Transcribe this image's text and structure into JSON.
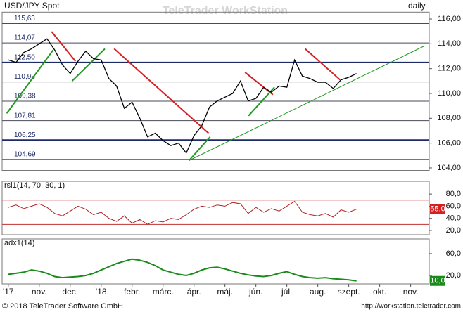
{
  "header": {
    "watermark": "TeleTrader WorkStation"
  },
  "footer": {
    "left": "© 2018 TeleTrader Software GmbH",
    "right": "http://workstation.teletrader.com"
  },
  "chart_data": [
    {
      "type": "line",
      "title": "USD/JPY Spot",
      "subtitle": "daily",
      "color": "#000000",
      "x": [
        0,
        0.25,
        0.5,
        0.75,
        1,
        1.25,
        1.5,
        1.75,
        2,
        2.25,
        2.5,
        2.75,
        3,
        3.25,
        3.5,
        3.75,
        4,
        4.25,
        4.5,
        4.75,
        5,
        5.25,
        5.5,
        5.75,
        6,
        6.25,
        6.5,
        6.75,
        7,
        7.25,
        7.5,
        7.75,
        8,
        8.25,
        8.5,
        8.75,
        9,
        9.25,
        9.5,
        9.75,
        10,
        10.25,
        10.5,
        10.75,
        11,
        11.25
      ],
      "values": [
        112.7,
        112.5,
        113.3,
        113.6,
        114.0,
        114.4,
        113.5,
        112.3,
        111.6,
        112.6,
        113.4,
        112.8,
        112.7,
        111.2,
        110.6,
        108.8,
        109.3,
        108.0,
        106.5,
        106.8,
        106.2,
        105.8,
        106.0,
        105.2,
        106.6,
        107.4,
        108.9,
        109.4,
        109.7,
        110.0,
        111.0,
        109.4,
        109.6,
        110.5,
        110.1,
        110.6,
        110.5,
        112.7,
        111.4,
        111.2,
        110.9,
        110.9,
        110.4,
        111.1,
        111.3,
        111.6
      ],
      "xlim": [
        -0.2,
        13.6
      ],
      "xticks": [
        {
          "value": 0,
          "label": "'17"
        },
        {
          "value": 1,
          "label": "nov."
        },
        {
          "value": 2,
          "label": "dec."
        },
        {
          "value": 3,
          "label": "'18"
        },
        {
          "value": 4,
          "label": "febr."
        },
        {
          "value": 5,
          "label": "márc."
        },
        {
          "value": 6,
          "label": "ápr."
        },
        {
          "value": 7,
          "label": "máj."
        },
        {
          "value": 8,
          "label": "jún."
        },
        {
          "value": 9,
          "label": "júl."
        },
        {
          "value": 10,
          "label": "aug."
        },
        {
          "value": 11,
          "label": "szept."
        },
        {
          "value": 12,
          "label": "okt."
        },
        {
          "value": 13,
          "label": "nov."
        }
      ],
      "ylim": [
        103.8,
        116.55
      ],
      "yticks": [
        {
          "value": 104,
          "label": "104,00"
        },
        {
          "value": 106,
          "label": "106,00"
        },
        {
          "value": 108,
          "label": "108,00"
        },
        {
          "value": 110,
          "label": "110,00"
        },
        {
          "value": 112,
          "label": "112,00"
        },
        {
          "value": 114,
          "label": "114,00"
        },
        {
          "value": 116,
          "label": "116,00"
        }
      ],
      "levels": [
        {
          "value": 115.63,
          "label": "115,63",
          "color": "#4a4a5a"
        },
        {
          "value": 114.07,
          "label": "114,07",
          "color": "#4a4a5a"
        },
        {
          "value": 112.5,
          "label": "112,50",
          "color": "#1c2a66"
        },
        {
          "value": 110.93,
          "label": "110,93",
          "color": "#4a4a5a"
        },
        {
          "value": 109.38,
          "label": "109,38",
          "color": "#4a4a5a"
        },
        {
          "value": 107.81,
          "label": "107,81",
          "color": "#4a4a5a"
        },
        {
          "value": 106.25,
          "label": "106,25",
          "color": "#1c2a66"
        },
        {
          "value": 104.69,
          "label": "104,69",
          "color": "#4a4a5a"
        }
      ],
      "trendlines": [
        {
          "color": "#d42020",
          "x": [
            1.4,
            2.17
          ],
          "y": [
            114.98,
            112.6
          ]
        },
        {
          "color": "#d42020",
          "x": [
            3.42,
            6.47
          ],
          "y": [
            113.6,
            106.8
          ]
        },
        {
          "color": "#d42020",
          "x": [
            7.65,
            8.55
          ],
          "y": [
            111.7,
            109.9
          ]
        },
        {
          "color": "#d42020",
          "x": [
            9.59,
            10.72
          ],
          "y": [
            113.6,
            111.1
          ]
        },
        {
          "color": "#1f9a1f",
          "x": [
            -0.05,
            1.45
          ],
          "y": [
            108.4,
            113.5
          ]
        },
        {
          "color": "#1f9a1f",
          "x": [
            2.06,
            3.12
          ],
          "y": [
            111.0,
            113.6
          ]
        },
        {
          "color": "#1f9a1f",
          "x": [
            5.84,
            6.52
          ],
          "y": [
            104.6,
            106.5
          ]
        },
        {
          "color": "#1f9a1f",
          "x": [
            7.76,
            8.6
          ],
          "y": [
            108.2,
            110.5
          ]
        },
        {
          "color": "#1f9a1f",
          "x": [
            5.84,
            13.42
          ],
          "y": [
            104.6,
            113.8
          ]
        }
      ]
    },
    {
      "type": "line",
      "title": "rsi1(14, 70, 30, 1)",
      "color": "#b02020",
      "label_color": "#d42020",
      "values": [
        58,
        62,
        56,
        60,
        64,
        58,
        48,
        44,
        52,
        60,
        55,
        46,
        50,
        40,
        35,
        44,
        32,
        38,
        30,
        36,
        34,
        40,
        38,
        46,
        55,
        60,
        58,
        62,
        60,
        66,
        64,
        48,
        58,
        50,
        56,
        52,
        60,
        68,
        50,
        46,
        44,
        48,
        42,
        54,
        50,
        55
      ],
      "value_labels": [
        null,
        null,
        null,
        null,
        null,
        null,
        null,
        null,
        null,
        null,
        null,
        null,
        null,
        null,
        null,
        null,
        null,
        null,
        null,
        null,
        null,
        null,
        null,
        null,
        null,
        null,
        null,
        null,
        null,
        null,
        null,
        null,
        null,
        null,
        null,
        null,
        null,
        null,
        null,
        null,
        null,
        null,
        null,
        null,
        null,
        "55,0"
      ],
      "ylim": [
        13,
        101
      ],
      "yticks": [
        {
          "value": 20,
          "label": "20,0"
        },
        {
          "value": 40,
          "label": "40,0"
        },
        {
          "value": 60,
          "label": "60,0"
        },
        {
          "value": 80,
          "label": "80,0"
        }
      ],
      "levels": [
        {
          "value": 70,
          "color": "#c03030"
        },
        {
          "value": 30,
          "color": "#c03030"
        }
      ]
    },
    {
      "type": "line",
      "title": "adx1(14)",
      "color": "#1a8a1a",
      "label_color": "#1a8a1a",
      "values": [
        22,
        24,
        26,
        30,
        28,
        24,
        18,
        16,
        17,
        18,
        20,
        24,
        30,
        36,
        42,
        46,
        50,
        48,
        44,
        38,
        30,
        26,
        22,
        20,
        24,
        30,
        34,
        35,
        32,
        28,
        24,
        21,
        19,
        18,
        20,
        24,
        27,
        22,
        18,
        16,
        15,
        16,
        14,
        13,
        12,
        10
      ],
      "value_labels": [
        null,
        null,
        null,
        null,
        null,
        null,
        null,
        null,
        null,
        null,
        null,
        null,
        null,
        null,
        null,
        null,
        null,
        null,
        null,
        null,
        null,
        null,
        null,
        null,
        null,
        null,
        null,
        null,
        null,
        null,
        null,
        null,
        null,
        null,
        null,
        null,
        null,
        null,
        null,
        null,
        null,
        null,
        null,
        null,
        null,
        "10,0"
      ],
      "ylim": [
        4.5,
        87
      ],
      "yticks": [
        {
          "value": 20,
          "label": "20,0"
        },
        {
          "value": 60,
          "label": "60,0"
        }
      ]
    }
  ]
}
